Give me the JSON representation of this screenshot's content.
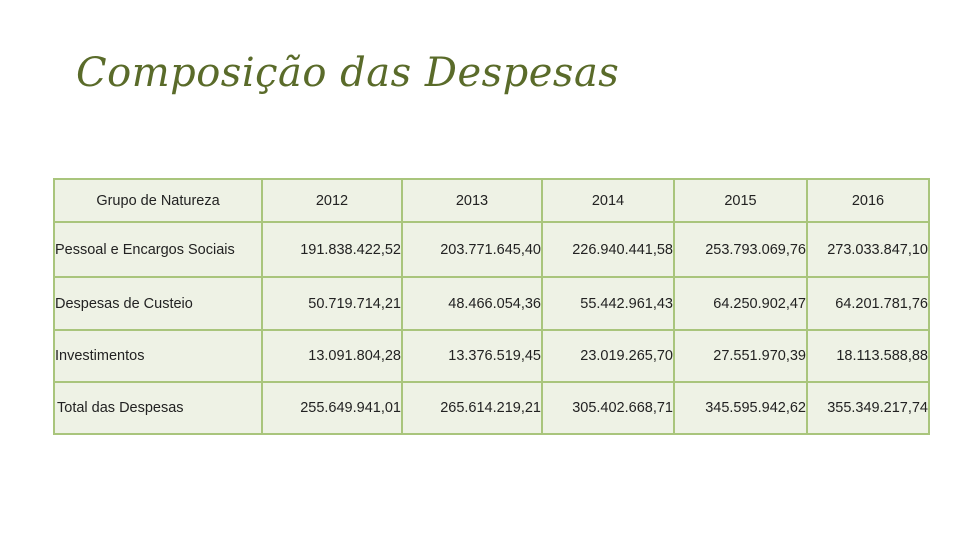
{
  "title": "Composição das Despesas",
  "table": {
    "headers": [
      "Grupo de Natureza",
      "2012",
      "2013",
      "2014",
      "2015",
      "2016"
    ],
    "rows": [
      {
        "label": "Pessoal e Encargos Sociais",
        "values": [
          "191.838.422,52",
          "203.771.645,40",
          "226.940.441,58",
          "253.793.069,76",
          "273.033.847,10"
        ]
      },
      {
        "label": "Despesas de Custeio",
        "values": [
          "50.719.714,21",
          "48.466.054,36",
          "55.442.961,43",
          "64.250.902,47",
          "64.201.781,76"
        ]
      },
      {
        "label": "Investimentos",
        "values": [
          "13.091.804,28",
          "13.376.519,45",
          "23.019.265,70",
          "27.551.970,39",
          "18.113.588,88"
        ]
      },
      {
        "label": "Total das Despesas",
        "values": [
          "255.649.941,01",
          "265.614.219,21",
          "305.402.668,71",
          "345.595.942,62",
          "355.349.217,74"
        ]
      }
    ]
  },
  "colors": {
    "title": "#5a6b2a",
    "border": "#a9c57c",
    "cell_bg": "#eef2e5"
  }
}
